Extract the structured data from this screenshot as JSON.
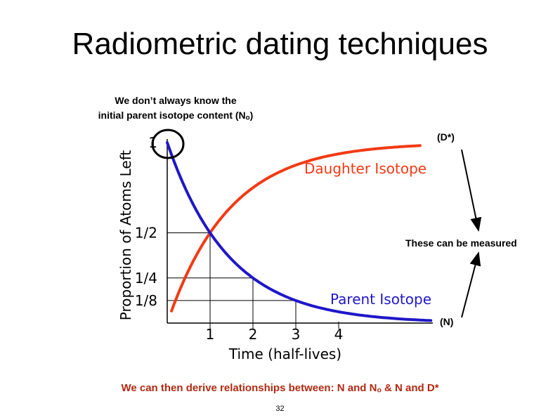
{
  "slide": {
    "title": "Radiometric dating techniques",
    "note_top_line1": "We don’t always know the",
    "note_top_line2": "initial parent isotope content (N",
    "note_top_sub": "o",
    "note_top_close": ")",
    "note_measured": "These can be measured",
    "note_bottom_pre": "We can then derive relationships between: N and N",
    "note_bottom_sub": "o",
    "note_bottom_post": " & N and D*",
    "page_number": "32"
  },
  "chart_data": {
    "type": "line",
    "title": "",
    "xlabel": "Time (half-lives)",
    "ylabel": "Proportion of Atoms Left",
    "xlim": [
      0,
      6
    ],
    "ylim": [
      0,
      1
    ],
    "x_ticks": [
      1,
      2,
      3,
      4
    ],
    "x_tick_labels": [
      "1",
      "2",
      "3",
      "4"
    ],
    "y_ticks": [
      1,
      0.5,
      0.25,
      0.125
    ],
    "y_tick_labels": [
      "1",
      "1/2",
      "1/4",
      "1/8"
    ],
    "series": [
      {
        "name": "Parent Isotope",
        "color": "#1f17c8",
        "x": [
          0,
          0.5,
          1,
          1.5,
          2,
          2.5,
          3,
          3.5,
          4,
          4.5,
          5,
          5.5,
          6
        ],
        "values": [
          1,
          0.707,
          0.5,
          0.354,
          0.25,
          0.177,
          0.125,
          0.088,
          0.0625,
          0.044,
          0.031,
          0.022,
          0.016
        ]
      },
      {
        "name": "Daughter Isotope",
        "color": "#f23a14",
        "x": [
          0,
          0.5,
          1,
          1.5,
          2,
          2.5,
          3,
          3.5,
          4,
          4.5,
          5,
          5.5,
          6
        ],
        "values": [
          0,
          0.293,
          0.5,
          0.646,
          0.75,
          0.823,
          0.875,
          0.912,
          0.9375,
          0.956,
          0.969,
          0.978,
          0.984
        ]
      }
    ],
    "annotations": [
      {
        "label": "(D*)",
        "target": "Daughter Isotope"
      },
      {
        "label": "(N)",
        "target": "Parent Isotope"
      }
    ]
  }
}
